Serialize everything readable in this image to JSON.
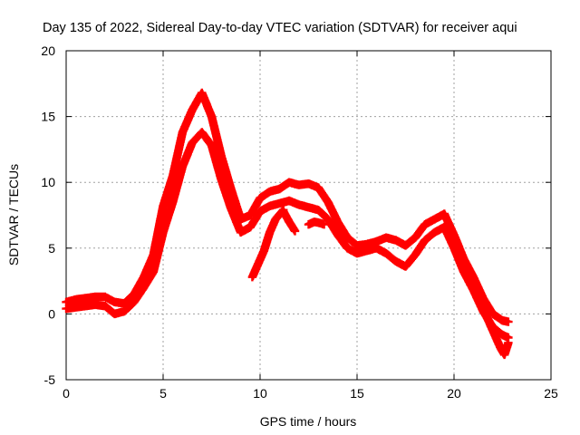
{
  "chart_data": {
    "type": "scatter",
    "title": "Day 135 of 2022, Sidereal Day-to-day VTEC variation (SDTVAR) for receiver aqui",
    "xlabel": "GPS time / hours",
    "ylabel": "SDTVAR / TECUs",
    "xlim": [
      0,
      25
    ],
    "ylim": [
      -5,
      20
    ],
    "xticks": [
      0,
      5,
      10,
      15,
      20,
      25
    ],
    "yticks": [
      -5,
      0,
      5,
      10,
      15,
      20
    ],
    "grid": true,
    "marker": "+",
    "colors": {
      "series": "#ff0000",
      "grid": "#a0a0a0",
      "axis": "#000000"
    },
    "series": [
      {
        "name": "main-trace-upper",
        "x": [
          0,
          0.5,
          1,
          1.5,
          2,
          2.5,
          3,
          3.5,
          4,
          4.5,
          5,
          5.5,
          6,
          6.5,
          7,
          7.5,
          8,
          8.5,
          9,
          9.5,
          10,
          10.5,
          11,
          11.5,
          12,
          12.5,
          13,
          13.5,
          14,
          14.5,
          15,
          15.5,
          16,
          16.5,
          17,
          17.5,
          18,
          18.5,
          19,
          19.5,
          20,
          20.5,
          21,
          21.5,
          22,
          22.5,
          22.8
        ],
        "y": [
          0.9,
          1.1,
          1.2,
          1.3,
          1.3,
          0.9,
          0.8,
          1.5,
          2.8,
          4.5,
          8.2,
          10.5,
          13.8,
          15.5,
          16.8,
          15.0,
          12.0,
          9.5,
          7.2,
          7.5,
          8.8,
          9.3,
          9.5,
          10.0,
          9.8,
          9.9,
          9.6,
          8.5,
          7.0,
          5.8,
          5.2,
          5.3,
          5.5,
          5.8,
          5.6,
          5.2,
          5.8,
          6.8,
          7.2,
          7.6,
          6.0,
          4.2,
          2.8,
          1.2,
          0.0,
          -0.5,
          -0.6
        ]
      },
      {
        "name": "main-trace-lower",
        "x": [
          0,
          0.5,
          1,
          1.5,
          2,
          2.5,
          3,
          3.5,
          4,
          4.5,
          5,
          5.5,
          6,
          6.5,
          7,
          7.5,
          8,
          8.5,
          9,
          9.5,
          10,
          10.5,
          11,
          11.5,
          12,
          12.5,
          13,
          13.5,
          14,
          14.5,
          15,
          15.5,
          16,
          16.5,
          17,
          17.5,
          18,
          18.5,
          19,
          19.5,
          20,
          20.5,
          21,
          21.5,
          22,
          22.5,
          22.8
        ],
        "y": [
          0.4,
          0.5,
          0.6,
          0.7,
          0.6,
          0.0,
          0.2,
          0.9,
          2.0,
          3.2,
          6.2,
          8.5,
          11.2,
          13.0,
          13.8,
          12.8,
          10.2,
          8.0,
          6.2,
          6.6,
          7.8,
          8.2,
          8.4,
          8.6,
          8.3,
          8.1,
          7.9,
          7.2,
          6.0,
          5.0,
          4.6,
          4.8,
          5.0,
          4.6,
          4.0,
          3.6,
          4.5,
          5.6,
          6.2,
          6.6,
          5.0,
          3.2,
          1.8,
          0.2,
          -1.0,
          -1.6,
          -1.8
        ]
      },
      {
        "name": "aux-trace-a",
        "x": [
          9.6,
          9.9,
          10.2,
          10.5,
          10.8,
          11.2
        ],
        "y": [
          2.8,
          3.8,
          4.8,
          6.2,
          7.2,
          7.9
        ]
      },
      {
        "name": "aux-trace-b",
        "x": [
          11.2,
          11.5,
          11.8
        ],
        "y": [
          7.8,
          7.0,
          6.3
        ]
      },
      {
        "name": "aux-trace-c",
        "x": [
          12.5,
          12.8,
          13.1,
          13.3
        ],
        "y": [
          6.8,
          7.0,
          6.9,
          6.8
        ]
      },
      {
        "name": "aux-trace-d",
        "x": [
          21.5,
          21.8,
          22.1,
          22.4,
          22.6,
          22.8
        ],
        "y": [
          0.4,
          -0.6,
          -1.6,
          -2.6,
          -3.1,
          -2.2
        ]
      }
    ]
  }
}
